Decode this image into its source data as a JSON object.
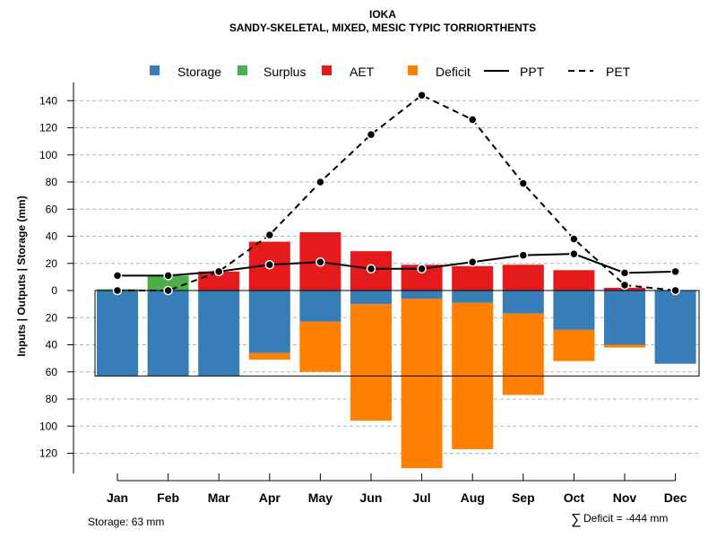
{
  "chart_data": {
    "type": "bar",
    "title": "IOKA",
    "subtitle": "SANDY-SKELETAL, MIXED, MESIC TYPIC TORRIORTHENTS",
    "ylabel": "Inputs | Outputs | Storage    (mm)",
    "xlabel": "",
    "ylim": [
      -135,
      155
    ],
    "y_ticks": [
      -120,
      -100,
      -80,
      -60,
      -40,
      -20,
      0,
      20,
      40,
      60,
      80,
      100,
      120,
      140
    ],
    "y_tick_labels": [
      "120",
      "100",
      "80",
      "60",
      "40",
      "20",
      "0",
      "20",
      "40",
      "60",
      "80",
      "100",
      "120",
      "140"
    ],
    "categories": [
      "Jan",
      "Feb",
      "Mar",
      "Apr",
      "May",
      "Jun",
      "Jul",
      "Aug",
      "Sep",
      "Oct",
      "Nov",
      "Dec"
    ],
    "legend": [
      {
        "name": "Storage",
        "kind": "box",
        "color": "#377EB8"
      },
      {
        "name": "Surplus",
        "kind": "box",
        "color": "#4DAF4A"
      },
      {
        "name": "AET",
        "kind": "box",
        "color": "#E41A1C"
      },
      {
        "name": "Deficit",
        "kind": "box",
        "color": "#FF7F00"
      },
      {
        "name": "PPT",
        "kind": "solid-line",
        "color": "#000000"
      },
      {
        "name": "PET",
        "kind": "dashed-line",
        "color": "#000000"
      }
    ],
    "series": [
      {
        "name": "Surplus",
        "color": "#4DAF4A",
        "values": [
          1,
          11,
          0,
          0,
          0,
          0,
          0,
          0,
          0,
          0,
          0,
          0
        ]
      },
      {
        "name": "AET",
        "color": "#E41A1C",
        "values": [
          0,
          0,
          14,
          36,
          43,
          29,
          19,
          18,
          19,
          15,
          2,
          0
        ]
      },
      {
        "name": "Storage",
        "color": "#377EB8",
        "values": [
          63,
          63,
          63,
          46,
          23,
          10,
          6,
          9,
          17,
          29,
          40,
          54
        ]
      },
      {
        "name": "Deficit",
        "color": "#FF7F00",
        "values": [
          0,
          0,
          0,
          5,
          37,
          86,
          125,
          108,
          60,
          23,
          2,
          0
        ]
      },
      {
        "name": "PPT",
        "color": "#000000",
        "values": [
          11,
          11,
          14,
          19,
          21,
          16,
          16,
          21,
          26,
          27,
          13,
          14
        ]
      },
      {
        "name": "PET",
        "color": "#000000",
        "values": [
          0,
          0,
          14,
          41,
          80,
          115,
          144,
          126,
          79,
          38,
          4,
          0
        ]
      }
    ],
    "storage_capacity": 63,
    "annotations": {
      "storage_note": "Storage: 63 mm",
      "deficit_symbol": "∑",
      "deficit_note": "Deficit = -444 mm"
    }
  }
}
